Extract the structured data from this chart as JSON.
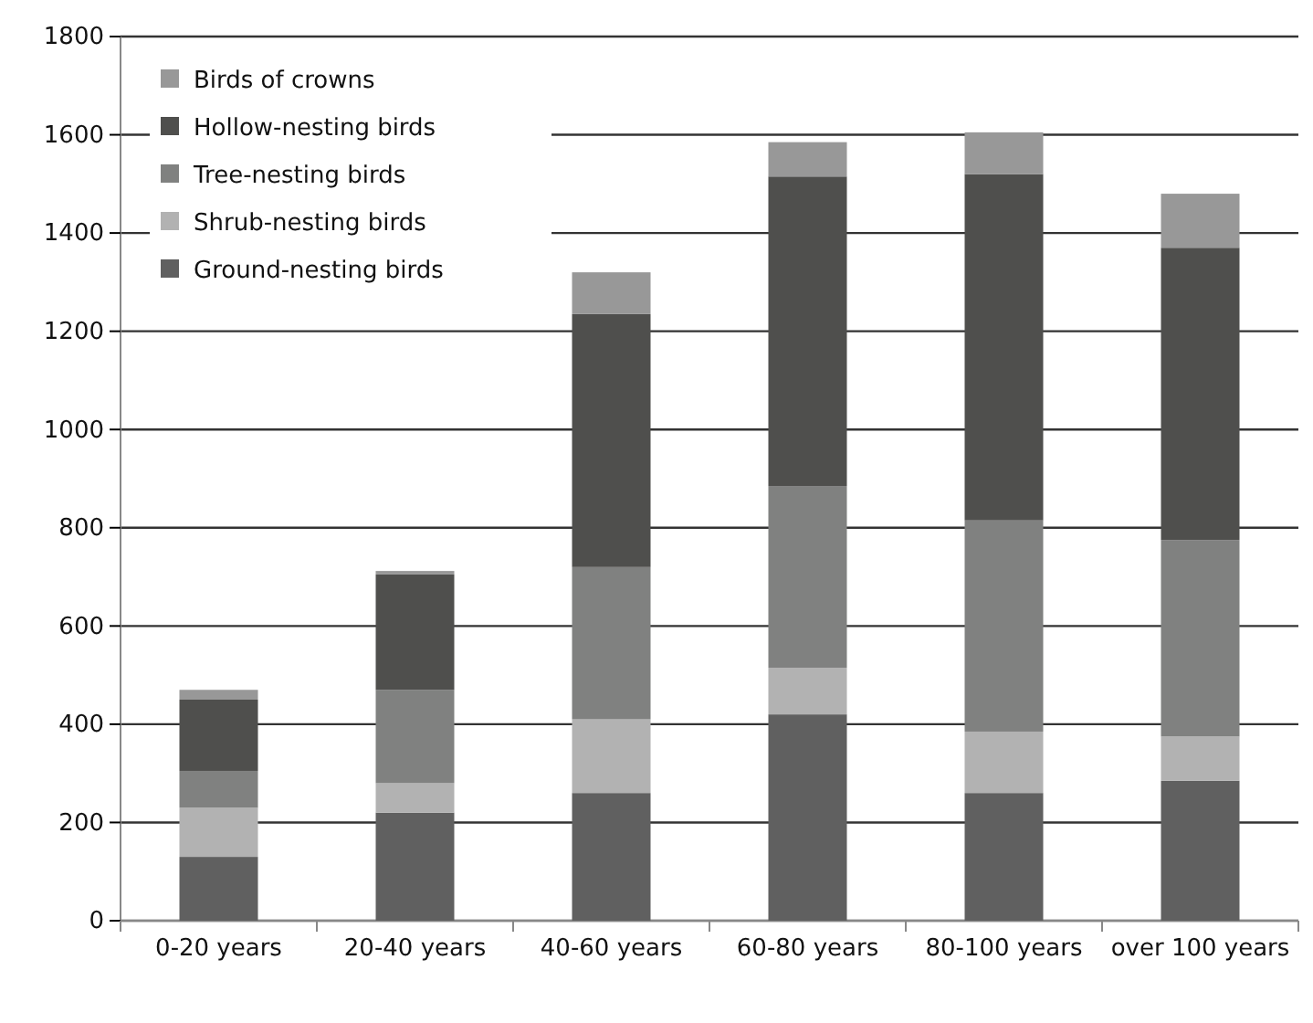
{
  "chart_data": {
    "type": "bar",
    "stacked": true,
    "categories": [
      "0-20 years",
      "20-40 years",
      "40-60 years",
      "60-80 years",
      "80-100 years",
      "over 100 years"
    ],
    "series": [
      {
        "name": "Ground-nesting birds",
        "color": "#606060",
        "values": [
          130,
          220,
          260,
          420,
          260,
          285
        ]
      },
      {
        "name": "Shrub-nesting birds",
        "color": "#b2b2b2",
        "values": [
          100,
          60,
          150,
          95,
          125,
          90
        ]
      },
      {
        "name": "Tree-nesting birds",
        "color": "#808180",
        "values": [
          75,
          190,
          310,
          370,
          430,
          400
        ]
      },
      {
        "name": "Hollow-nesting birds",
        "color": "#4f4f4d",
        "values": [
          145,
          235,
          515,
          630,
          705,
          595
        ]
      },
      {
        "name": "Birds of crowns",
        "color": "#989898",
        "values": [
          20,
          7,
          85,
          70,
          85,
          110
        ]
      }
    ],
    "ylim": [
      0,
      1800
    ],
    "yticks": [
      0,
      200,
      400,
      600,
      800,
      1000,
      1200,
      1400,
      1600,
      1800
    ],
    "grid": "y",
    "legend": "top left"
  }
}
